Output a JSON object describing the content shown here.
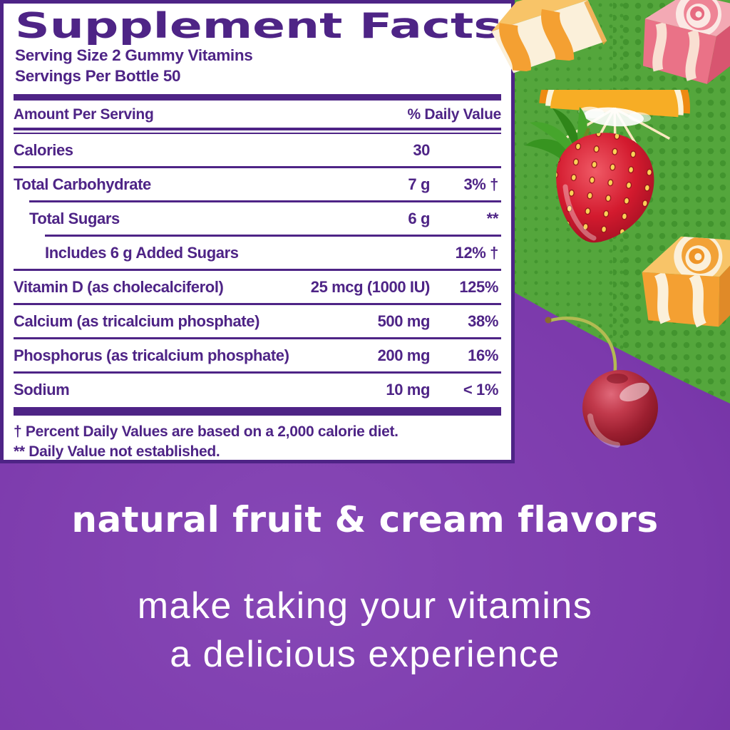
{
  "colors": {
    "labelPurple": "#4e2486",
    "panelBg": "#ffffff",
    "bgPurpleLight": "#8748b6",
    "bgPurpleDark": "#551e8a",
    "green": "#54a63c",
    "dotGreen": "#3b8e28",
    "taglineWhite": "#ffffff",
    "candyOrange": "#f4a032",
    "candyCream": "#fbf0da",
    "candyPink": "#ea7287",
    "orangePeel": "#ee8a12",
    "orangeFlesh": "#f7ad25",
    "strawberryRed": "#d31a2e",
    "seedYellow": "#fcd257",
    "leafGreen": "#3f9b2e",
    "cherryRed": "#9c1f30",
    "stemGreen": "#b3bb52"
  },
  "supplement_panel": {
    "title": "Supplement Facts",
    "serving_size": "Serving Size 2 Gummy Vitamins",
    "servings_per_bottle": "Servings Per Bottle 50",
    "header": {
      "amount_col": "Amount Per Serving",
      "dv_col": "% Daily Value"
    },
    "rows": [
      {
        "name": "Calories",
        "amount": "30",
        "dv": "",
        "indent": 0
      },
      {
        "name": "Total Carbohydrate",
        "amount": "7 g",
        "dv": "3% †",
        "indent": 0
      },
      {
        "name": "Total Sugars",
        "amount": "6 g",
        "dv": "**",
        "indent": 1
      },
      {
        "name": "Includes 6 g Added Sugars",
        "amount": "",
        "dv": "12% †",
        "indent": 2
      },
      {
        "name": "Vitamin D (as cholecalciferol)",
        "amount": "25 mcg (1000 IU)",
        "dv": "125%",
        "indent": 0
      },
      {
        "name": "Calcium (as tricalcium phosphate)",
        "amount": "500 mg",
        "dv": "38%",
        "indent": 0
      },
      {
        "name": "Phosphorus (as tricalcium phosphate)",
        "amount": "200 mg",
        "dv": "16%",
        "indent": 0
      },
      {
        "name": "Sodium",
        "amount": "10 mg",
        "dv": "< 1%",
        "indent": 0
      }
    ],
    "footnotes": [
      "† Percent Daily Values are based on a 2,000 calorie diet.",
      "** Daily Value not established."
    ]
  },
  "tagline": {
    "headline": "natural fruit & cream flavors",
    "line2": "make taking your vitamins",
    "line3": "a delicious experience"
  },
  "decor": {
    "icons": [
      {
        "name": "orange-swirl-candy-top-icon"
      },
      {
        "name": "pink-swirl-candy-icon"
      },
      {
        "name": "orange-slice-icon"
      },
      {
        "name": "strawberry-icon"
      },
      {
        "name": "orange-swirl-candy-right-icon"
      },
      {
        "name": "cherry-icon"
      }
    ]
  }
}
